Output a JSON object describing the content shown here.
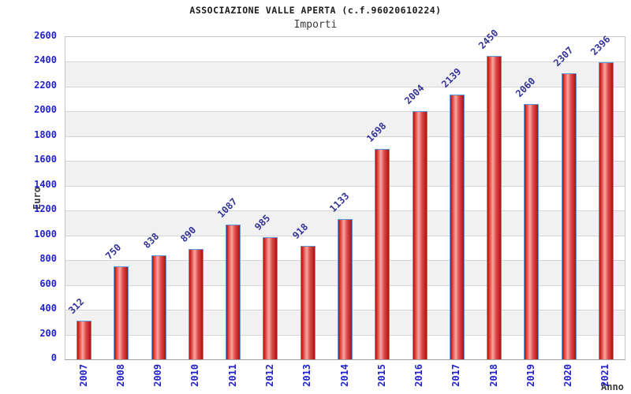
{
  "header": {
    "title": "ASSOCIAZIONE VALLE APERTA (c.f.96020610224)",
    "subtitle": "Importi"
  },
  "chart_data": {
    "type": "bar",
    "title": "ASSOCIAZIONE VALLE APERTA (c.f.96020610224)",
    "subtitle": "Importi",
    "xlabel": "Anno",
    "ylabel": "Euro",
    "categories": [
      "2007",
      "2008",
      "2009",
      "2010",
      "2011",
      "2012",
      "2013",
      "2014",
      "2015",
      "2016",
      "2017",
      "2018",
      "2019",
      "2020",
      "2021"
    ],
    "values": [
      312,
      750,
      838,
      890,
      1087,
      985,
      918,
      1133,
      1698,
      2004,
      2139,
      2450,
      2060,
      2307,
      2396
    ],
    "ylim": [
      0,
      2600
    ],
    "ytick_step": 200,
    "grid": true,
    "legend": "none",
    "value_labels_rotated_deg": -45,
    "colors": {
      "bar_dark": "#b01010",
      "bar_mid": "#e04b4b",
      "bar_highlight": "#f7a8a0",
      "bar_border": "#5b9bd5",
      "axis_tick_label": "#2222cc",
      "value_label": "#333399",
      "axis_title": "#3c3c3c",
      "band": "#f1f1f1",
      "gridline": "#d4d4d4",
      "plot_border": "#c6c6c6",
      "baseline": "#9e9e9e",
      "background": "#ffffff"
    }
  }
}
